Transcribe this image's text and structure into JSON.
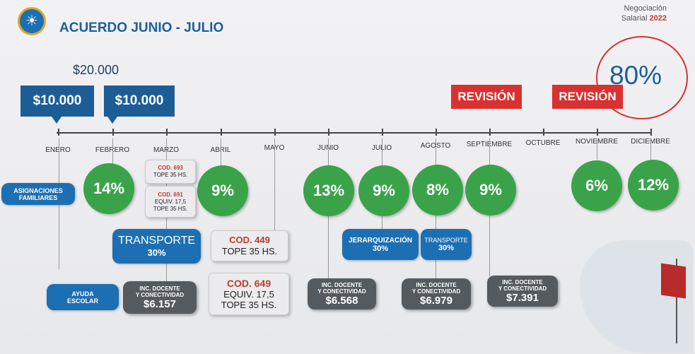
{
  "header": {
    "title": "ACUERDO JUNIO - JULIO",
    "negociacion_line1": "Negociación",
    "negociacion_line2_prefix": "Salarial",
    "negociacion_year": "2022"
  },
  "fixed_sum": {
    "total": "$20.000",
    "part1": "$10.000",
    "part2": "$10.000"
  },
  "revision": {
    "label1": "REVISIÓN",
    "label2": "REVISIÓN",
    "total_percent": "80%"
  },
  "months": [
    "ENERO",
    "FEBRERO",
    "MARZO",
    "ABRIL",
    "MAYO",
    "JUNIO",
    "JULIO",
    "AGOSTO",
    "SEPTIEMBRE",
    "OCTUBRE",
    "NOVIEMBRE",
    "DICIEMBRE"
  ],
  "labels": {
    "asignaciones": [
      "ASIGNACIONES",
      "FAMILIARES"
    ],
    "ayuda": [
      "AYUDA",
      "ESCOLAR"
    ]
  },
  "increases": {
    "febrero": "14%",
    "abril": "9%",
    "junio": "13%",
    "julio": "9%",
    "agosto": "8%",
    "septiembre": "9%",
    "noviembre": "6%",
    "diciembre": "12%"
  },
  "marzo_cards": {
    "c1_code": "COD. 693",
    "c1_line": "TOPE 35 HS.",
    "c2_code": "COD. 691",
    "c2_l1": "EQUIV. 17,5",
    "c2_l2": "TOPE 35 HS."
  },
  "transporte1": {
    "label": "TRANSPORTE",
    "pct": "30%"
  },
  "cod449": {
    "code": "COD. 449",
    "line": "TOPE 35 HS."
  },
  "cod649": {
    "code": "COD. 649",
    "l1": "EQUIV. 17,5",
    "l2": "TOPE 35 HS."
  },
  "jerarquizacion": {
    "label": "JERARQUIZACIÓN",
    "pct": "30%"
  },
  "transporte2": {
    "label": "TRANSPORTE",
    "pct": "30%"
  },
  "inc_docente": {
    "marzo": {
      "l1": "INC. DOCENTE",
      "l2": "Y CONECTIVIDAD",
      "amount": "$6.157"
    },
    "junio": {
      "l1": "INC. DOCENTE",
      "l2": "Y CONECTIVIDAD",
      "amount": "$6.568"
    },
    "agosto": {
      "l1": "INC. DOCENTE",
      "l2": "Y CONECTIVIDAD",
      "amount": "$6.979"
    },
    "octubre": {
      "l1": "INC. DOCENTE",
      "l2": "Y CONECTIVIDAD",
      "amount": "$7.391"
    }
  },
  "colors": {
    "blue": "#1d6fb3",
    "dark_blue": "#1d5d95",
    "green": "#3aa34a",
    "red": "#d93030",
    "gray_card": "#555a5f"
  }
}
